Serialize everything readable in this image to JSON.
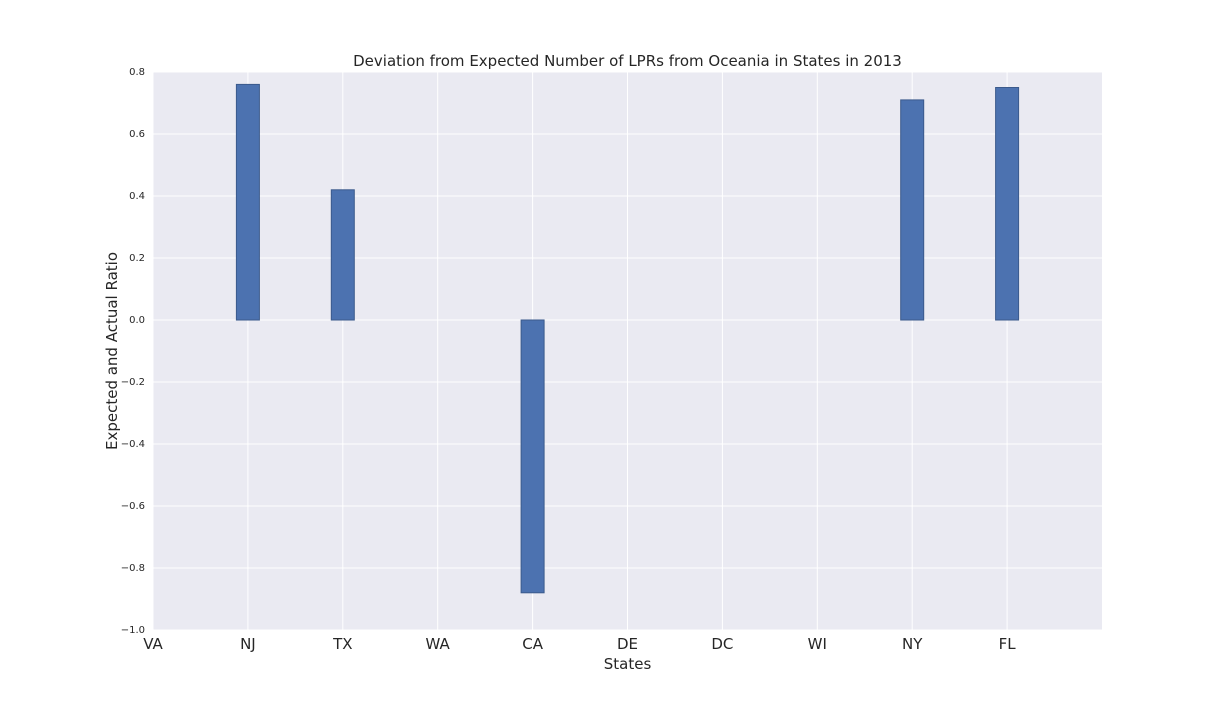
{
  "chart_data": {
    "type": "bar",
    "title": "Deviation from Expected Number of LPRs from Oceania in States in 2013",
    "xlabel": "States",
    "ylabel": "Expected and Actual Ratio",
    "categories": [
      "VA",
      "NJ",
      "TX",
      "WA",
      "CA",
      "DE",
      "DC",
      "WI",
      "NY",
      "FL"
    ],
    "values": [
      null,
      0.76,
      0.42,
      null,
      -0.88,
      null,
      null,
      null,
      0.71,
      0.75
    ],
    "ylim": [
      -1.0,
      0.8
    ],
    "yticks": [
      "0.8",
      "0.6",
      "0.4",
      "0.2",
      "0.0",
      "−0.2",
      "−0.4",
      "−0.6",
      "−0.8",
      "−1.0"
    ],
    "grid": true,
    "colors": {
      "bar": "#4c72b0",
      "background": "#eaeaf2"
    }
  }
}
